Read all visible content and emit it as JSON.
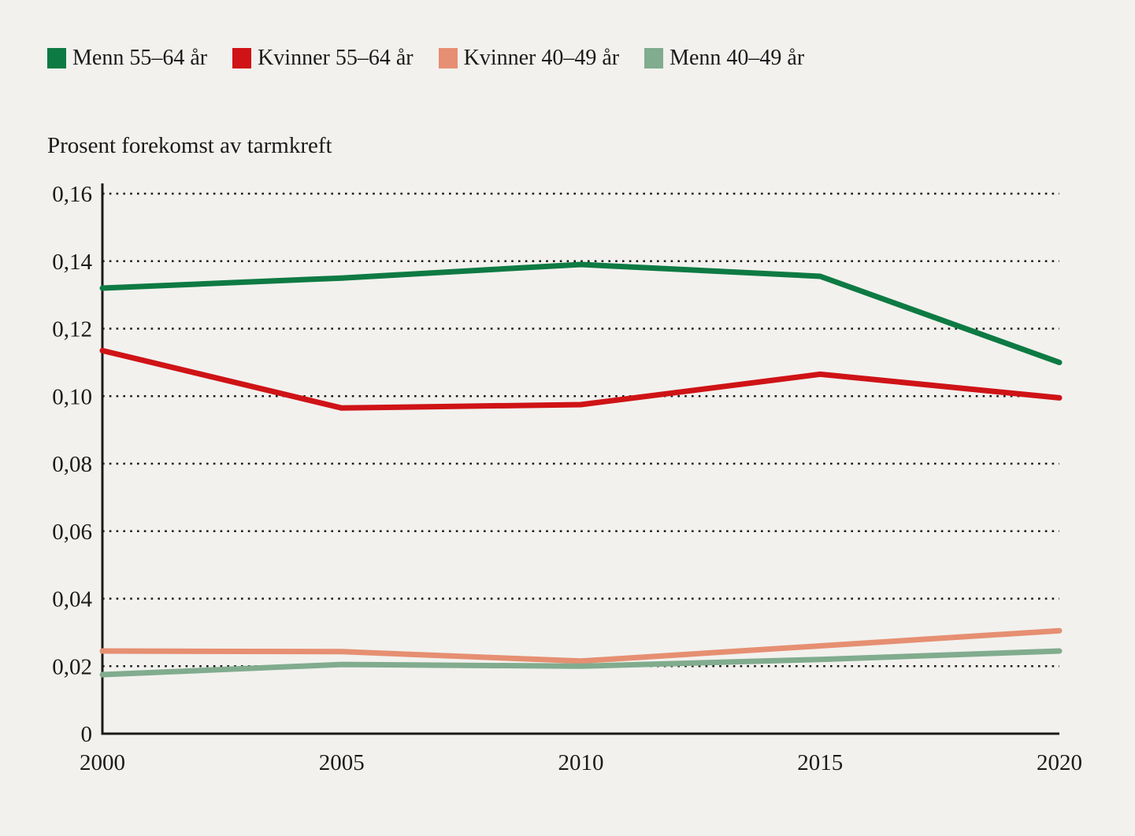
{
  "page": {
    "background_color": "#f2f1ee",
    "text_color": "#1a1a1a"
  },
  "legend": {
    "position": "top-left",
    "items": [
      {
        "label": "Menn 55–64 år",
        "color": "#0e7a43"
      },
      {
        "label": "Kvinner 55–64 år",
        "color": "#cf1316"
      },
      {
        "label": "Kvinner 40–49 år",
        "color": "#e68f72"
      },
      {
        "label": "Menn 40–49 år",
        "color": "#81ac8e"
      }
    ]
  },
  "chart_data": {
    "type": "line",
    "title": "Prosent forekomst av tarmkreft",
    "xlabel": "",
    "ylabel": "Prosent forekomst av tarmkreft",
    "x": [
      2000,
      2005,
      2010,
      2015,
      2020
    ],
    "x_tick_labels": [
      "2000",
      "2005",
      "2010",
      "2015",
      "2020"
    ],
    "xlim": [
      2000,
      2020
    ],
    "y_ticks": [
      0,
      0.02,
      0.04,
      0.06,
      0.08,
      0.1,
      0.12,
      0.14,
      0.16
    ],
    "y_tick_labels": [
      "0",
      "0,02",
      "0,04",
      "0,06",
      "0,08",
      "0,10",
      "0,12",
      "0,14",
      "0,16"
    ],
    "ylim": [
      0,
      0.16
    ],
    "grid": "horizontal-dotted",
    "legend_position": "top-left",
    "series": [
      {
        "name": "Menn 55–64 år",
        "color": "#0e7a43",
        "values": [
          0.132,
          0.135,
          0.139,
          0.1355,
          0.11
        ]
      },
      {
        "name": "Kvinner 55–64 år",
        "color": "#cf1316",
        "values": [
          0.1135,
          0.0965,
          0.0975,
          0.1065,
          0.0995
        ]
      },
      {
        "name": "Kvinner 40–49 år",
        "color": "#e68f72",
        "values": [
          0.0245,
          0.0243,
          0.0215,
          0.026,
          0.0305
        ]
      },
      {
        "name": "Menn 40–49 år",
        "color": "#81ac8e",
        "values": [
          0.0175,
          0.0205,
          0.02,
          0.022,
          0.0245
        ]
      }
    ]
  }
}
